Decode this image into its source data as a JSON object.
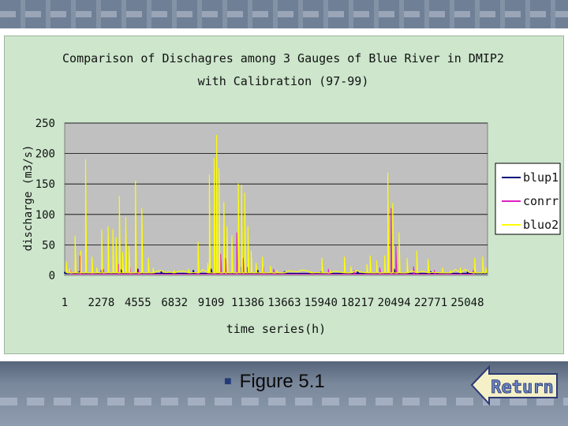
{
  "slide": {
    "caption": "Figure 5.1",
    "return_label": "Return"
  },
  "chart_data": {
    "type": "line",
    "title_line1": "Comparison of Dischagres among 3 Gauges of Blue River in DMIP2",
    "title_line2": "with Calibration (97-99)",
    "xlabel": "time series(h)",
    "ylabel": "discharge (m3/s)",
    "ylim": [
      0,
      250
    ],
    "yticks": [
      "0",
      "50",
      "100",
      "150",
      "200",
      "250"
    ],
    "xlim": [
      1,
      26300
    ],
    "xticks": [
      "1",
      "2278",
      "4555",
      "6832",
      "9109",
      "11386",
      "13663",
      "15940",
      "18217",
      "20494",
      "22771",
      "25048"
    ],
    "grid": true,
    "legend_position": "right",
    "series": [
      {
        "name": "blup1",
        "color": "#00007a",
        "peaks": [
          [
            1,
            5
          ],
          [
            900,
            6
          ],
          [
            2278,
            8
          ],
          [
            3500,
            9
          ],
          [
            4555,
            10
          ],
          [
            6000,
            6
          ],
          [
            8000,
            8
          ],
          [
            9109,
            10
          ],
          [
            10000,
            12
          ],
          [
            11000,
            14
          ],
          [
            11386,
            13
          ],
          [
            12000,
            8
          ],
          [
            13663,
            6
          ],
          [
            15940,
            5
          ],
          [
            18217,
            6
          ],
          [
            20494,
            10
          ],
          [
            22771,
            6
          ],
          [
            25048,
            5
          ],
          [
            26200,
            4
          ]
        ]
      },
      {
        "name": "conrr",
        "color": "#e020c0",
        "peaks": [
          [
            350,
            8
          ],
          [
            950,
            32
          ],
          [
            1700,
            22
          ],
          [
            2400,
            10
          ],
          [
            3350,
            18
          ],
          [
            4050,
            14
          ],
          [
            4600,
            8
          ],
          [
            8300,
            16
          ],
          [
            9300,
            28
          ],
          [
            9700,
            35
          ],
          [
            10000,
            28
          ],
          [
            10700,
            70
          ],
          [
            11100,
            28
          ],
          [
            12350,
            14
          ],
          [
            13000,
            10
          ],
          [
            16400,
            10
          ],
          [
            18000,
            8
          ],
          [
            19600,
            12
          ],
          [
            20300,
            110
          ],
          [
            20600,
            48
          ],
          [
            21700,
            14
          ],
          [
            23000,
            8
          ],
          [
            25400,
            8
          ]
        ]
      },
      {
        "name": "bluo2",
        "color": "#ffff00",
        "peaks": [
          [
            100,
            22
          ],
          [
            300,
            10
          ],
          [
            650,
            65
          ],
          [
            1000,
            40
          ],
          [
            1300,
            190
          ],
          [
            1700,
            30
          ],
          [
            2000,
            12
          ],
          [
            2300,
            75
          ],
          [
            2700,
            80
          ],
          [
            3000,
            75
          ],
          [
            3200,
            62
          ],
          [
            3400,
            130
          ],
          [
            3600,
            38
          ],
          [
            3800,
            95
          ],
          [
            4000,
            48
          ],
          [
            4400,
            155
          ],
          [
            4800,
            110
          ],
          [
            5200,
            28
          ],
          [
            5500,
            12
          ],
          [
            6800,
            8
          ],
          [
            7700,
            10
          ],
          [
            8300,
            55
          ],
          [
            8900,
            20
          ],
          [
            9000,
            165
          ],
          [
            9300,
            192
          ],
          [
            9450,
            230
          ],
          [
            9600,
            175
          ],
          [
            9900,
            120
          ],
          [
            10100,
            80
          ],
          [
            10400,
            65
          ],
          [
            10800,
            150
          ],
          [
            11000,
            148
          ],
          [
            11200,
            135
          ],
          [
            11400,
            80
          ],
          [
            11600,
            40
          ],
          [
            11900,
            20
          ],
          [
            12300,
            30
          ],
          [
            12800,
            15
          ],
          [
            13200,
            8
          ],
          [
            13663,
            5
          ],
          [
            15300,
            6
          ],
          [
            16000,
            28
          ],
          [
            16500,
            8
          ],
          [
            17400,
            30
          ],
          [
            17800,
            14
          ],
          [
            18800,
            18
          ],
          [
            19000,
            32
          ],
          [
            19400,
            24
          ],
          [
            19900,
            32
          ],
          [
            20100,
            168
          ],
          [
            20400,
            118
          ],
          [
            20800,
            70
          ],
          [
            21300,
            28
          ],
          [
            21900,
            40
          ],
          [
            22600,
            26
          ],
          [
            23500,
            12
          ],
          [
            24000,
            8
          ],
          [
            24600,
            12
          ],
          [
            25500,
            28
          ],
          [
            26000,
            30
          ],
          [
            26200,
            12
          ]
        ]
      }
    ]
  }
}
